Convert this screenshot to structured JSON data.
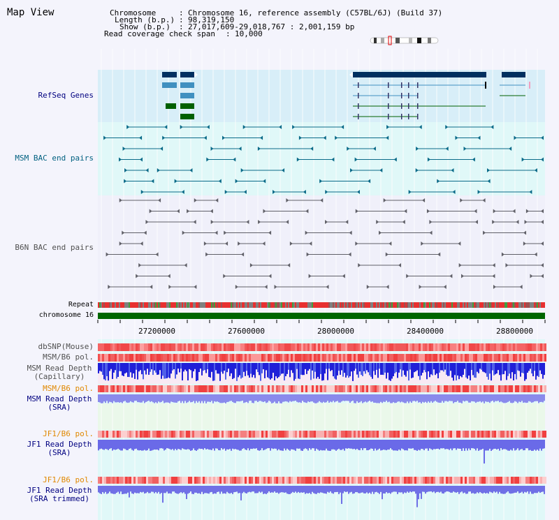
{
  "title": "Map View",
  "info": {
    "chromosome_label": "Chromosome",
    "chromosome_value": "Chromosome 16, reference assembly (C57BL/6J) (Build 37)",
    "length_label": "Length (b.p.)",
    "length_value": "98,319,150",
    "show_label": "Show (b.p.)",
    "show_value": "27,017,609-29,018,767 : 2,001,159 bp",
    "coverage_label": "Read coverage check span",
    "coverage_value": "10,000"
  },
  "tracks": {
    "refseq": "RefSeq Genes",
    "msm_bac": "MSM BAC end pairs",
    "b6n_bac": "B6N BAC end pairs",
    "repeat": "Repeat",
    "chromosome": "chromosome 16",
    "dbsnp": "dbSNP(Mouse)",
    "msm_b6_pol_1": "MSM/B6 pol.",
    "msm_depth_cap_1": "MSM Read Depth",
    "msm_depth_cap_2": "(Capillary)",
    "msm_b6_pol_2": "MSM/B6 pol.",
    "msm_depth_sra_1": "MSM Read Depth",
    "msm_depth_sra_2": "(SRA)",
    "jf1_b6_pol_1": "JF1/B6 pol.",
    "jf1_depth_sra_1": "JF1 Read Depth",
    "jf1_depth_sra_2": "(SRA)",
    "jf1_b6_pol_2": "JF1/B6 pol.",
    "jf1_depth_trim_1": "JF1 Read Depth",
    "jf1_depth_trim_2": "(SRA trimmed)"
  },
  "axis_ticks": [
    "27200000",
    "27600000",
    "28000000",
    "28400000",
    "28800000"
  ],
  "colors": {
    "refseq_bg": "#d8eef8",
    "bac_bg": "#e0f8f8",
    "depth_bg": "#e0f8f8",
    "label_navy": "#000080",
    "label_teal": "#006080",
    "label_orange": "#e08800",
    "gene_navy": "#003060",
    "gene_blue": "#4090c0",
    "gene_green": "#006000",
    "chromosome_bar": "#006600",
    "snp_red": "#f04040",
    "depth_blue": "#2020e0"
  }
}
